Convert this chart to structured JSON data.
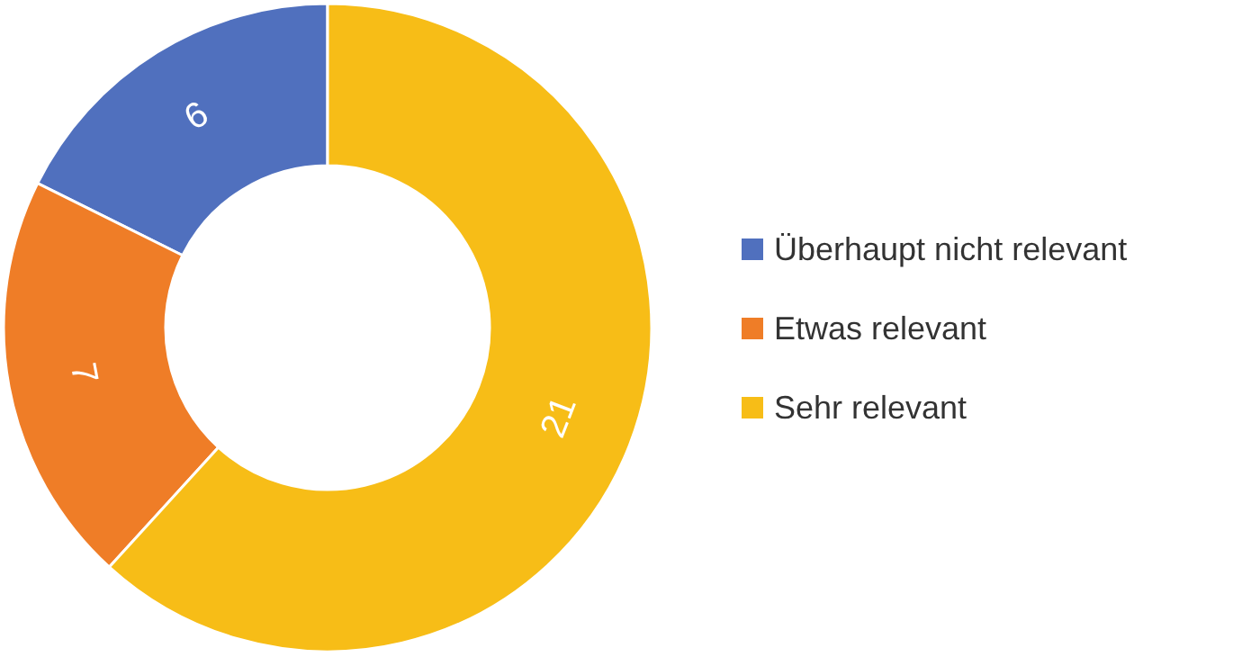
{
  "chart_data": {
    "type": "donut",
    "categories": [
      "Überhaupt nicht relevant",
      "Etwas relevant",
      "Sehr relevant"
    ],
    "values": [
      6,
      7,
      21
    ],
    "colors": [
      "#5070be",
      "#ef7d27",
      "#f7bd17"
    ],
    "data_labels": true,
    "legend": "right"
  }
}
